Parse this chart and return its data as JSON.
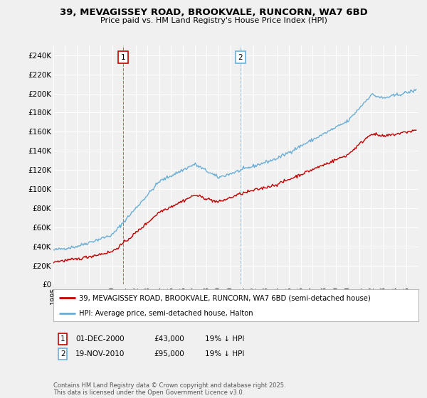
{
  "title": "39, MEVAGISSEY ROAD, BROOKVALE, RUNCORN, WA7 6BD",
  "subtitle": "Price paid vs. HM Land Registry's House Price Index (HPI)",
  "title_fontsize": 9.5,
  "subtitle_fontsize": 8,
  "hpi_color": "#6aaed6",
  "price_color": "#c00000",
  "dashed_color_1": "#c00000",
  "dashed_color_2": "#6aaed6",
  "sale1_date": "01-DEC-2000",
  "sale1_price": "£43,000",
  "sale1_hpi": "19% ↓ HPI",
  "sale2_date": "19-NOV-2010",
  "sale2_price": "£95,000",
  "sale2_hpi": "19% ↓ HPI",
  "legend_line1": "39, MEVAGISSEY ROAD, BROOKVALE, RUNCORN, WA7 6BD (semi-detached house)",
  "legend_line2": "HPI: Average price, semi-detached house, Halton",
  "footer": "Contains HM Land Registry data © Crown copyright and database right 2025.\nThis data is licensed under the Open Government Licence v3.0.",
  "ylim": [
    0,
    250000
  ],
  "yticks": [
    0,
    20000,
    40000,
    60000,
    80000,
    100000,
    120000,
    140000,
    160000,
    180000,
    200000,
    220000,
    240000
  ],
  "ytick_labels": [
    "£0",
    "£20K",
    "£40K",
    "£60K",
    "£80K",
    "£100K",
    "£120K",
    "£140K",
    "£160K",
    "£180K",
    "£200K",
    "£220K",
    "£240K"
  ],
  "background_color": "#f0f0f0",
  "plot_bg_color": "#f0f0f0",
  "grid_color": "#ffffff",
  "sale1_year": 2000.917,
  "sale2_year": 2010.883,
  "xmin": 1995,
  "xmax": 2026
}
